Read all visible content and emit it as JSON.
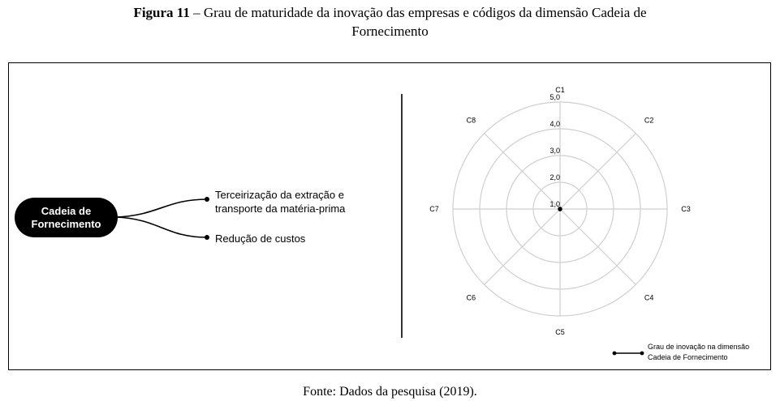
{
  "caption": {
    "label": "Figura 11",
    "text": "– Grau de maturidade da inovação das empresas e códigos da dimensão Cadeia de",
    "line2": "Fornecimento"
  },
  "mindmap": {
    "root_line1": "Cadeia de",
    "root_line2": "Fornecimento",
    "branches": [
      {
        "line1": "Terceirização da extração e",
        "line2": "transporte da matéria-prima"
      },
      {
        "line1": "Redução de custos"
      }
    ]
  },
  "chart_data": {
    "type": "radar",
    "axes": [
      "C1",
      "C2",
      "C3",
      "C4",
      "C5",
      "C6",
      "C7",
      "C8"
    ],
    "ticks": [
      "1,0",
      "2,0",
      "3,0",
      "4,0",
      "5,0"
    ],
    "rlim": [
      1,
      5
    ],
    "series": [
      {
        "name": "Grau de inovação na dimensão Cadeia de Fornecimento",
        "values": [
          1,
          1,
          1,
          1,
          1,
          1,
          1,
          1
        ]
      }
    ],
    "legend": {
      "line1": "Grau de inovação na dimensão",
      "line2": "Cadeia de Fornecimento",
      "position": "bottom-right"
    },
    "grid": true
  },
  "source": "Fonte: Dados da pesquisa (2019)."
}
